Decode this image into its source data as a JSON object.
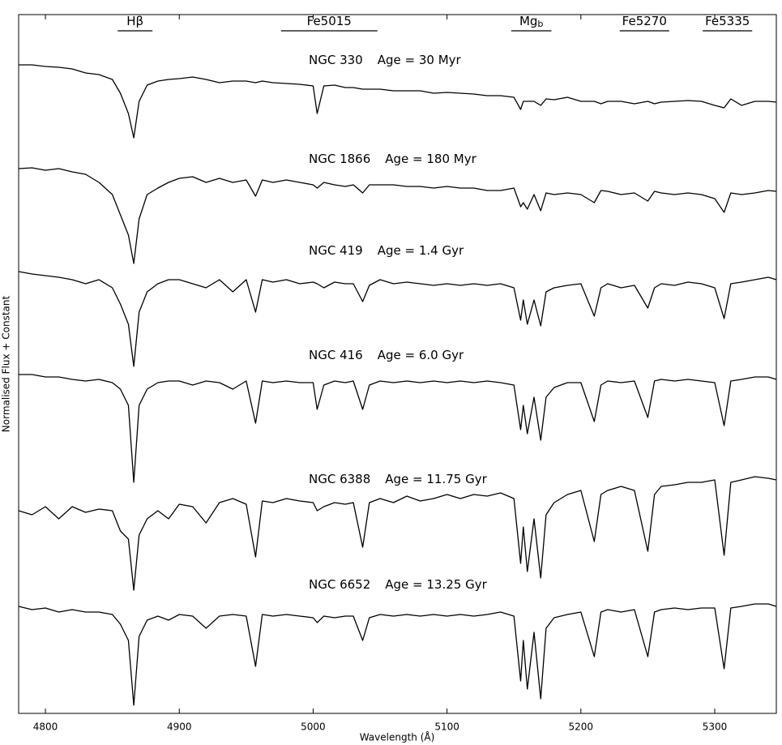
{
  "chart_data": {
    "type": "line",
    "xlabel": "Wavelength (Å)",
    "ylabel": "Normalised Flux + Constant",
    "xlim": [
      4780,
      5346
    ],
    "ylim": [
      0,
      862
    ],
    "xticks": [
      4800,
      4900,
      5000,
      5100,
      5200,
      5300
    ],
    "bands": [
      {
        "label": "Hβ",
        "range": [
          4854,
          4880
        ]
      },
      {
        "label": "Fe5015",
        "range": [
          4976,
          5048
        ]
      },
      {
        "label": "Mg",
        "subscript": "b",
        "range": [
          5148,
          5178
        ]
      },
      {
        "label": "Fe5270",
        "range": [
          5229,
          5266
        ]
      },
      {
        "label": "Fe5335",
        "range": [
          5291,
          5328
        ]
      }
    ],
    "x": [
      4780,
      4790,
      4800,
      4810,
      4820,
      4830,
      4840,
      4850,
      4856,
      4862,
      4866,
      4870,
      4876,
      4884,
      4892,
      4900,
      4910,
      4920,
      4930,
      4940,
      4950,
      4957,
      4962,
      4970,
      4980,
      4990,
      5000,
      5003,
      5008,
      5016,
      5024,
      5030,
      5037,
      5042,
      5050,
      5060,
      5070,
      5080,
      5090,
      5100,
      5110,
      5120,
      5130,
      5140,
      5150,
      5155,
      5157,
      5160,
      5165,
      5170,
      5174,
      5180,
      5190,
      5200,
      5210,
      5215,
      5220,
      5230,
      5240,
      5250,
      5255,
      5260,
      5270,
      5280,
      5290,
      5300,
      5307,
      5312,
      5320,
      5330,
      5340,
      5346
    ],
    "series": [
      {
        "name": "NGC 330",
        "age": "Age = 30 Myr",
        "color": "#000000",
        "values": [
          800,
          800,
          798,
          797,
          795,
          790,
          788,
          782,
          765,
          740,
          710,
          755,
          775,
          780,
          782,
          783,
          785,
          782,
          778,
          780,
          780,
          778,
          780,
          778,
          777,
          776,
          774,
          740,
          774,
          775,
          772,
          772,
          770,
          770,
          770,
          768,
          768,
          768,
          765,
          766,
          765,
          764,
          762,
          762,
          760,
          745,
          755,
          755,
          755,
          750,
          758,
          757,
          760,
          755,
          755,
          752,
          755,
          755,
          752,
          755,
          752,
          754,
          755,
          756,
          755,
          750,
          747,
          758,
          750,
          755,
          755,
          754
        ]
      },
      {
        "name": "NGC 1866",
        "age": "Age = 180 Myr",
        "color": "#000000",
        "values": [
          672,
          673,
          670,
          672,
          668,
          665,
          655,
          640,
          615,
          590,
          555,
          610,
          640,
          648,
          655,
          660,
          662,
          655,
          660,
          655,
          658,
          638,
          658,
          655,
          658,
          655,
          652,
          648,
          655,
          652,
          650,
          652,
          642,
          652,
          652,
          652,
          650,
          650,
          648,
          650,
          648,
          648,
          645,
          645,
          648,
          625,
          630,
          622,
          640,
          620,
          642,
          640,
          642,
          640,
          630,
          645,
          644,
          640,
          642,
          632,
          644,
          642,
          640,
          642,
          640,
          635,
          618,
          642,
          640,
          642,
          645,
          644
        ]
      },
      {
        "name": "NGC 419",
        "age": "Age = 1.4 Gyr",
        "color": "#000000",
        "values": [
          545,
          542,
          540,
          538,
          535,
          530,
          535,
          525,
          505,
          480,
          428,
          495,
          520,
          530,
          535,
          535,
          530,
          525,
          535,
          520,
          535,
          495,
          535,
          532,
          535,
          530,
          532,
          530,
          525,
          532,
          530,
          530,
          508,
          528,
          535,
          530,
          532,
          530,
          528,
          530,
          528,
          530,
          528,
          530,
          525,
          485,
          510,
          480,
          510,
          478,
          520,
          525,
          528,
          530,
          490,
          525,
          530,
          525,
          528,
          500,
          525,
          530,
          528,
          532,
          530,
          525,
          487,
          530,
          532,
          535,
          538,
          535
        ]
      },
      {
        "name": "NGC 416",
        "age": "Age = 6.0 Gyr",
        "color": "#000000",
        "values": [
          418,
          418,
          415,
          415,
          412,
          410,
          412,
          408,
          400,
          380,
          285,
          380,
          400,
          408,
          410,
          410,
          405,
          410,
          408,
          400,
          410,
          358,
          410,
          408,
          410,
          408,
          408,
          375,
          405,
          410,
          408,
          410,
          375,
          405,
          410,
          408,
          410,
          408,
          410,
          408,
          410,
          408,
          410,
          408,
          405,
          350,
          380,
          345,
          390,
          337,
          390,
          402,
          408,
          408,
          360,
          405,
          410,
          408,
          410,
          365,
          410,
          412,
          410,
          412,
          410,
          408,
          355,
          410,
          412,
          415,
          415,
          412
        ]
      },
      {
        "name": "NGC 6388",
        "age": "Age = 11.75 Gyr",
        "color": "#000000",
        "values": [
          250,
          245,
          255,
          240,
          255,
          248,
          252,
          250,
          225,
          215,
          152,
          220,
          240,
          250,
          240,
          258,
          255,
          235,
          260,
          265,
          258,
          193,
          262,
          260,
          265,
          262,
          260,
          250,
          255,
          260,
          258,
          260,
          205,
          260,
          265,
          260,
          268,
          262,
          265,
          270,
          265,
          270,
          268,
          272,
          265,
          185,
          230,
          175,
          240,
          167,
          245,
          260,
          270,
          275,
          212,
          270,
          275,
          280,
          275,
          200,
          270,
          280,
          282,
          285,
          285,
          288,
          195,
          285,
          288,
          292,
          290,
          288
        ]
      },
      {
        "name": "NGC 6652",
        "age": "Age = 13.25 Gyr",
        "color": "#000000",
        "values": [
          132,
          128,
          130,
          125,
          128,
          125,
          125,
          122,
          110,
          90,
          10,
          95,
          115,
          120,
          115,
          122,
          120,
          105,
          120,
          122,
          120,
          58,
          122,
          120,
          122,
          120,
          118,
          112,
          120,
          118,
          120,
          120,
          90,
          118,
          122,
          120,
          122,
          120,
          122,
          120,
          122,
          120,
          122,
          125,
          120,
          40,
          90,
          30,
          100,
          18,
          105,
          118,
          122,
          125,
          70,
          125,
          128,
          125,
          128,
          70,
          125,
          128,
          130,
          128,
          130,
          130,
          55,
          130,
          132,
          135,
          135,
          132
        ]
      }
    ]
  }
}
